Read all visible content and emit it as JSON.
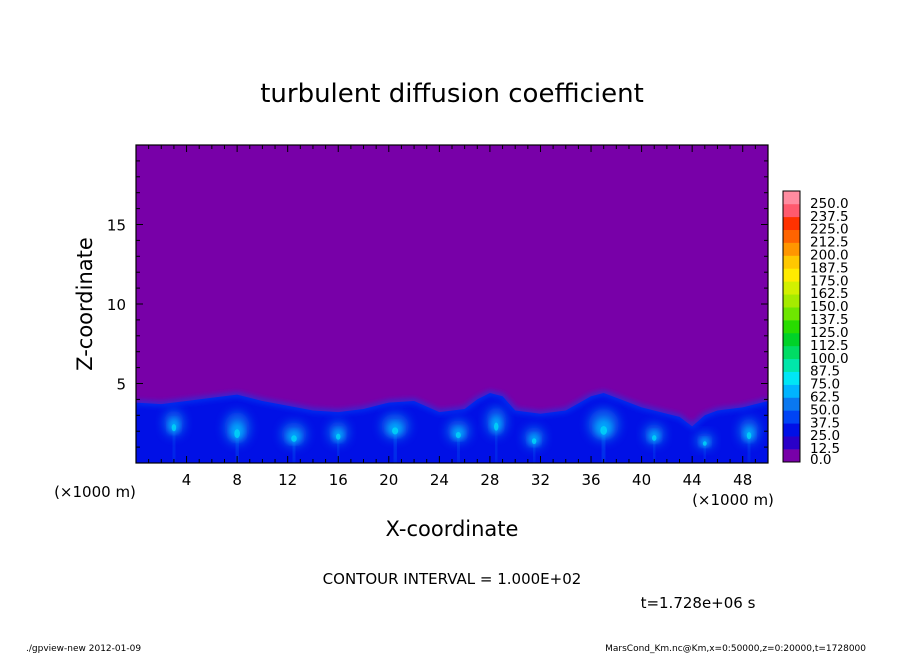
{
  "footer": {
    "left": "./gpview-new  2012-01-09",
    "right": "MarsCond_Km.nc@Km,x=0:50000,z=0:20000,t=1728000"
  },
  "chart_data": {
    "type": "heatmap",
    "title": "turbulent diffusion coefficient",
    "xlabel": "X-coordinate",
    "ylabel": "Z-coordinate",
    "x_unit": "(×1000 m)",
    "y_unit": "(×1000 m)",
    "xlim": [
      0,
      50
    ],
    "ylim": [
      0,
      20
    ],
    "x_ticks": [
      4,
      8,
      12,
      16,
      20,
      24,
      28,
      32,
      36,
      40,
      44,
      48
    ],
    "y_ticks": [
      5,
      10,
      15
    ],
    "contour_interval_label": "CONTOUR INTERVAL = 1.000E+02",
    "time_label": "t=1.728e+06 s",
    "background_value": 0.0,
    "colorbar": {
      "labels": [
        "0.0",
        "12.5",
        "25.0",
        "37.5",
        "50.0",
        "62.5",
        "75.0",
        "87.5",
        "100.0",
        "112.5",
        "125.0",
        "137.5",
        "150.0",
        "162.5",
        "175.0",
        "187.5",
        "200.0",
        "212.5",
        "225.0",
        "237.5",
        "250.0"
      ],
      "colors": [
        "#7800a8",
        "#2a00c8",
        "#0010e6",
        "#0044f5",
        "#0a78f0",
        "#00b4ff",
        "#00e6f5",
        "#00e6aa",
        "#00dc64",
        "#00d228",
        "#28dc00",
        "#6ee600",
        "#a5eb00",
        "#d2f000",
        "#ffeb00",
        "#ffc800",
        "#ff9600",
        "#ff6400",
        "#ff3200",
        "#ff5a6e",
        "#ff8ca0"
      ]
    },
    "boundary_layer_top": [
      [
        0,
        3.8
      ],
      [
        2,
        3.7
      ],
      [
        4,
        3.9
      ],
      [
        6,
        4.1
      ],
      [
        8,
        4.3
      ],
      [
        10,
        3.9
      ],
      [
        12,
        3.6
      ],
      [
        14,
        3.3
      ],
      [
        16,
        3.2
      ],
      [
        18,
        3.4
      ],
      [
        20,
        3.8
      ],
      [
        22,
        3.9
      ],
      [
        24,
        3.2
      ],
      [
        26,
        3.4
      ],
      [
        27,
        4.0
      ],
      [
        28,
        4.4
      ],
      [
        29,
        4.2
      ],
      [
        30,
        3.3
      ],
      [
        32,
        3.1
      ],
      [
        34,
        3.3
      ],
      [
        36,
        4.2
      ],
      [
        37,
        4.4
      ],
      [
        38,
        4.1
      ],
      [
        40,
        3.5
      ],
      [
        42,
        3.1
      ],
      [
        43,
        2.9
      ],
      [
        44,
        2.3
      ],
      [
        45,
        3.0
      ],
      [
        46,
        3.3
      ],
      [
        48,
        3.5
      ],
      [
        50,
        3.9
      ]
    ],
    "thermals": [
      {
        "x": 3,
        "z": 2.5,
        "w": 1.6,
        "h": 1.6
      },
      {
        "x": 8,
        "z": 2.2,
        "w": 2.0,
        "h": 2.0
      },
      {
        "x": 12.5,
        "z": 1.8,
        "w": 2.0,
        "h": 1.5
      },
      {
        "x": 16,
        "z": 1.9,
        "w": 1.6,
        "h": 1.4
      },
      {
        "x": 20.5,
        "z": 2.3,
        "w": 2.2,
        "h": 1.6
      },
      {
        "x": 25.5,
        "z": 2.0,
        "w": 1.8,
        "h": 1.4
      },
      {
        "x": 28.5,
        "z": 2.6,
        "w": 1.6,
        "h": 1.8
      },
      {
        "x": 31.5,
        "z": 1.6,
        "w": 1.6,
        "h": 1.3
      },
      {
        "x": 37,
        "z": 2.4,
        "w": 2.4,
        "h": 2.0
      },
      {
        "x": 41,
        "z": 1.8,
        "w": 1.6,
        "h": 1.3
      },
      {
        "x": 45,
        "z": 1.4,
        "w": 1.4,
        "h": 1.0
      },
      {
        "x": 48.5,
        "z": 2.0,
        "w": 1.6,
        "h": 1.6
      }
    ]
  }
}
